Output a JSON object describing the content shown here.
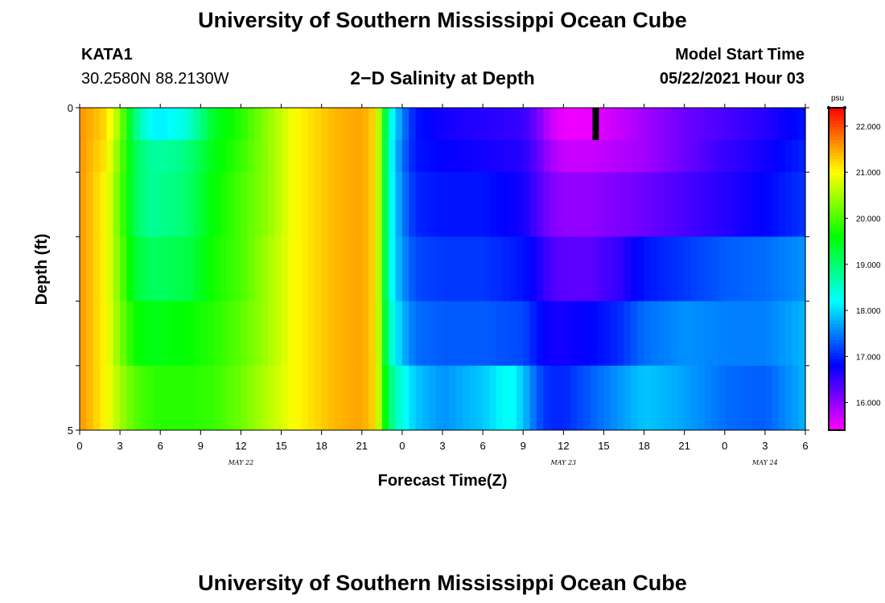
{
  "header": {
    "title_top": "University of Southern Mississippi Ocean Cube",
    "title_bottom": "University of Southern Mississippi Ocean Cube",
    "station_id": "KATA1",
    "coords": "30.2580N  88.2130W",
    "plot_title": "2−D Salinity at Depth",
    "start_label": "Model Start Time",
    "start_value": "05/22/2021 Hour 03"
  },
  "chart_data": {
    "type": "heatmap",
    "title": "2-D Salinity at Depth",
    "xlabel": "Forecast Time(Z)",
    "ylabel": "Depth (ft)",
    "units": "psu",
    "y_range": [
      0,
      5
    ],
    "y_ticks": [
      "0",
      "5"
    ],
    "x_range_hours": [
      0,
      54
    ],
    "x_tick_labels": [
      "0",
      "3",
      "6",
      "9",
      "12",
      "15",
      "18",
      "21",
      "0",
      "3",
      "6",
      "9",
      "12",
      "15",
      "18",
      "21",
      "0",
      "3",
      "6"
    ],
    "x_tick_hours": [
      0,
      3,
      6,
      9,
      12,
      15,
      18,
      21,
      24,
      27,
      30,
      33,
      36,
      39,
      42,
      45,
      48,
      51,
      54
    ],
    "date_labels": [
      {
        "text": "MAY 22",
        "hour": 12
      },
      {
        "text": "MAY 23",
        "hour": 36
      },
      {
        "text": "MAY 24",
        "hour": 51
      }
    ],
    "colorbar": {
      "unit": "psu",
      "min": 15.4,
      "max": 22.4,
      "ticks": [
        "22.000",
        "21.000",
        "20.000",
        "19.000",
        "18.000",
        "17.000",
        "16.000"
      ],
      "tick_values": [
        22,
        21,
        20,
        19,
        18,
        17,
        16
      ]
    },
    "depth_layers": [
      {
        "depth": 0.0,
        "points": [
          [
            0,
            21.6
          ],
          [
            2,
            21.2
          ],
          [
            3,
            20.4
          ],
          [
            4,
            19.0
          ],
          [
            5,
            18.3
          ],
          [
            6,
            18.1
          ],
          [
            8,
            18.4
          ],
          [
            10,
            19.4
          ],
          [
            12,
            19.8
          ],
          [
            14,
            20.4
          ],
          [
            16,
            21.0
          ],
          [
            19,
            21.4
          ],
          [
            21,
            21.5
          ],
          [
            22,
            21.2
          ],
          [
            22.5,
            20.0
          ],
          [
            23,
            18.5
          ],
          [
            24,
            17.5
          ],
          [
            25,
            16.9
          ],
          [
            27,
            16.7
          ],
          [
            30,
            16.6
          ],
          [
            33,
            16.5
          ],
          [
            34,
            16.2
          ],
          [
            35,
            15.7
          ],
          [
            36,
            15.5
          ],
          [
            38,
            15.5
          ],
          [
            40,
            15.7
          ],
          [
            42,
            15.9
          ],
          [
            45,
            16.2
          ],
          [
            48,
            16.4
          ],
          [
            51,
            16.6
          ],
          [
            54,
            16.9
          ]
        ]
      },
      {
        "depth": 0.5,
        "points": [
          [
            0,
            21.6
          ],
          [
            2,
            21.1
          ],
          [
            3,
            20.2
          ],
          [
            4,
            19.2
          ],
          [
            5,
            18.8
          ],
          [
            6,
            18.7
          ],
          [
            8,
            18.9
          ],
          [
            10,
            19.5
          ],
          [
            12,
            19.9
          ],
          [
            14,
            20.4
          ],
          [
            16,
            21.0
          ],
          [
            19,
            21.4
          ],
          [
            21,
            21.5
          ],
          [
            22,
            21.2
          ],
          [
            22.5,
            20.0
          ],
          [
            23,
            18.4
          ],
          [
            24,
            17.4
          ],
          [
            25,
            16.9
          ],
          [
            27,
            16.8
          ],
          [
            30,
            16.7
          ],
          [
            33,
            16.6
          ],
          [
            34,
            16.3
          ],
          [
            35,
            15.9
          ],
          [
            36,
            15.7
          ],
          [
            38,
            15.7
          ],
          [
            40,
            15.8
          ],
          [
            42,
            15.9
          ],
          [
            45,
            16.2
          ],
          [
            48,
            16.5
          ],
          [
            51,
            16.7
          ],
          [
            54,
            17.0
          ]
        ]
      },
      {
        "depth": 1.5,
        "points": [
          [
            0,
            21.6
          ],
          [
            2,
            21.0
          ],
          [
            3,
            20.1
          ],
          [
            4,
            19.2
          ],
          [
            5,
            18.8
          ],
          [
            6,
            18.8
          ],
          [
            8,
            19.0
          ],
          [
            10,
            19.6
          ],
          [
            12,
            20.0
          ],
          [
            14,
            20.4
          ],
          [
            16,
            21.0
          ],
          [
            19,
            21.4
          ],
          [
            21,
            21.5
          ],
          [
            22,
            21.2
          ],
          [
            22.5,
            20.0
          ],
          [
            23,
            18.4
          ],
          [
            24,
            17.5
          ],
          [
            25,
            17.0
          ],
          [
            27,
            16.9
          ],
          [
            30,
            16.9
          ],
          [
            33,
            16.7
          ],
          [
            34,
            16.4
          ],
          [
            35,
            16.1
          ],
          [
            36,
            16.0
          ],
          [
            38,
            16.0
          ],
          [
            40,
            16.1
          ],
          [
            42,
            16.2
          ],
          [
            45,
            16.4
          ],
          [
            48,
            16.6
          ],
          [
            51,
            16.8
          ],
          [
            54,
            17.1
          ]
        ]
      },
      {
        "depth": 2.5,
        "points": [
          [
            0,
            21.6
          ],
          [
            2,
            21.0
          ],
          [
            3,
            20.2
          ],
          [
            4,
            19.4
          ],
          [
            5,
            19.1
          ],
          [
            6,
            19.1
          ],
          [
            8,
            19.2
          ],
          [
            10,
            19.7
          ],
          [
            12,
            20.0
          ],
          [
            14,
            20.5
          ],
          [
            16,
            21.0
          ],
          [
            19,
            21.4
          ],
          [
            21,
            21.5
          ],
          [
            22,
            21.2
          ],
          [
            22.5,
            20.0
          ],
          [
            23,
            18.4
          ],
          [
            24,
            17.6
          ],
          [
            25,
            17.2
          ],
          [
            27,
            17.1
          ],
          [
            30,
            17.1
          ],
          [
            33,
            16.9
          ],
          [
            34,
            16.7
          ],
          [
            35,
            16.4
          ],
          [
            36,
            16.3
          ],
          [
            38,
            16.3
          ],
          [
            40,
            16.5
          ],
          [
            42,
            16.9
          ],
          [
            45,
            17.1
          ],
          [
            48,
            17.3
          ],
          [
            51,
            17.4
          ],
          [
            54,
            17.6
          ]
        ]
      },
      {
        "depth": 3.5,
        "points": [
          [
            0,
            21.6
          ],
          [
            2,
            21.0
          ],
          [
            3,
            20.3
          ],
          [
            4,
            19.7
          ],
          [
            5,
            19.5
          ],
          [
            6,
            19.5
          ],
          [
            8,
            19.6
          ],
          [
            10,
            19.8
          ],
          [
            12,
            20.1
          ],
          [
            14,
            20.5
          ],
          [
            16,
            21.0
          ],
          [
            19,
            21.4
          ],
          [
            21,
            21.5
          ],
          [
            22,
            21.2
          ],
          [
            22.5,
            20.0
          ],
          [
            23,
            18.6
          ],
          [
            24,
            17.8
          ],
          [
            25,
            17.4
          ],
          [
            27,
            17.3
          ],
          [
            30,
            17.3
          ],
          [
            33,
            17.2
          ],
          [
            34,
            16.9
          ],
          [
            35,
            16.7
          ],
          [
            36,
            16.7
          ],
          [
            38,
            16.8
          ],
          [
            40,
            17.0
          ],
          [
            42,
            17.4
          ],
          [
            45,
            17.6
          ],
          [
            48,
            17.5
          ],
          [
            51,
            17.5
          ],
          [
            54,
            17.8
          ]
        ]
      },
      {
        "depth": 4.5,
        "points": [
          [
            0,
            21.6
          ],
          [
            2,
            21.0
          ],
          [
            3,
            20.5
          ],
          [
            4,
            20.1
          ],
          [
            5,
            19.9
          ],
          [
            6,
            19.8
          ],
          [
            8,
            19.8
          ],
          [
            10,
            19.9
          ],
          [
            12,
            20.2
          ],
          [
            14,
            20.6
          ],
          [
            16,
            21.0
          ],
          [
            19,
            21.4
          ],
          [
            21,
            21.5
          ],
          [
            22,
            21.2
          ],
          [
            22.5,
            20.1
          ],
          [
            23,
            19.0
          ],
          [
            24,
            18.3
          ],
          [
            25,
            17.9
          ],
          [
            27,
            17.6
          ],
          [
            30,
            17.9
          ],
          [
            32,
            18.3
          ],
          [
            33,
            17.9
          ],
          [
            34,
            17.3
          ],
          [
            35,
            17.0
          ],
          [
            36,
            17.0
          ],
          [
            38,
            17.3
          ],
          [
            40,
            17.6
          ],
          [
            42,
            17.9
          ],
          [
            45,
            17.7
          ],
          [
            48,
            17.4
          ],
          [
            51,
            17.3
          ],
          [
            54,
            17.8
          ]
        ]
      }
    ],
    "current_time_marker_hour": 38.4
  },
  "colors": {
    "axis": "#000000",
    "background": "#ffffff",
    "marker": "#000000"
  }
}
